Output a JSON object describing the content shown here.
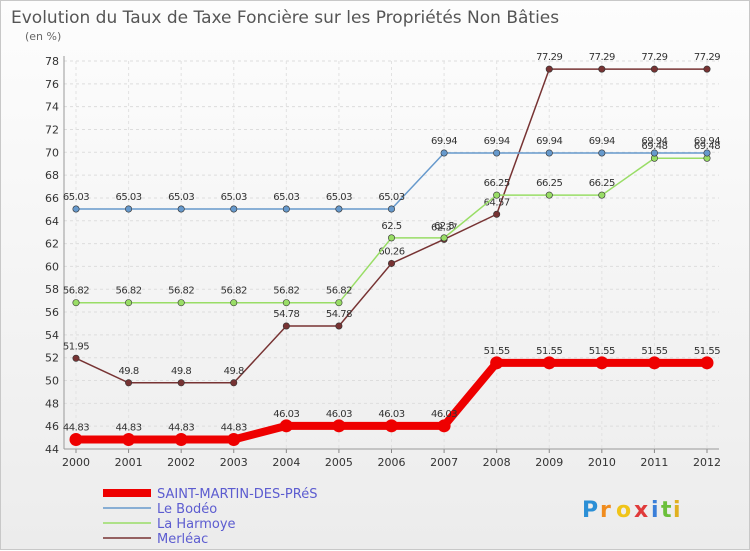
{
  "chart_data": {
    "type": "line",
    "title": "Evolution du Taux de Taxe Foncière sur les Propriétés Non Bâties",
    "subtitle": "(en %)",
    "xlabel": "",
    "ylabel": "",
    "ylim": [
      44,
      78
    ],
    "yticks": [
      44,
      46,
      48,
      50,
      52,
      54,
      56,
      58,
      60,
      62,
      64,
      66,
      68,
      70,
      72,
      74,
      76,
      78
    ],
    "categories": [
      "2000",
      "2001",
      "2002",
      "2003",
      "2004",
      "2005",
      "2006",
      "2007",
      "2008",
      "2009",
      "2010",
      "2011",
      "2012"
    ],
    "grid": true,
    "legend_position": "bottom-left",
    "series": [
      {
        "name": "SAINT-MARTIN-DES-PRéS",
        "color": "#ee0000",
        "values": [
          44.83,
          44.83,
          44.83,
          44.83,
          46.03,
          46.03,
          46.03,
          46.03,
          51.55,
          51.55,
          51.55,
          51.55,
          51.55
        ],
        "labels": [
          "44.83",
          "44.83",
          "44.83",
          "44.83",
          "46.03",
          "46.03",
          "46.03",
          "46.03",
          "51.55",
          "51.55",
          "51.55",
          "51.55",
          "51.55"
        ]
      },
      {
        "name": "Le Bodéo",
        "color": "#6699cc",
        "values": [
          65.03,
          65.03,
          65.03,
          65.03,
          65.03,
          65.03,
          65.03,
          69.94,
          69.94,
          69.94,
          69.94,
          69.94,
          69.94
        ],
        "labels": [
          "65.03",
          "65.03",
          "65.03",
          "65.03",
          "65.03",
          "65.03",
          "65.03",
          "69.94",
          "69.94",
          "69.94",
          "69.94",
          "69.94",
          "69.94"
        ]
      },
      {
        "name": "La Harmoye",
        "color": "#99dd66",
        "values": [
          56.82,
          56.82,
          56.82,
          56.82,
          56.82,
          56.82,
          62.5,
          62.5,
          66.25,
          66.25,
          66.25,
          69.48,
          69.48
        ],
        "labels": [
          "56.82",
          "56.82",
          "56.82",
          "56.82",
          "56.82",
          "56.82",
          "62.5",
          "62.5",
          "66.25",
          "66.25",
          "66.25",
          "69.48",
          "69.48"
        ]
      },
      {
        "name": "Merléac",
        "color": "#773333",
        "values": [
          51.95,
          49.8,
          49.8,
          49.8,
          54.78,
          54.78,
          60.26,
          62.37,
          64.57,
          77.29,
          77.29,
          77.29,
          77.29
        ],
        "labels": [
          "51.95",
          "49.8",
          "49.8",
          "49.8",
          "54.78",
          "54.78",
          "60.26",
          "62.37",
          "64.57",
          "77.29",
          "77.29",
          "77.29",
          "77.29"
        ]
      }
    ],
    "logo": [
      "P",
      "r",
      "o",
      "x",
      "i",
      "t",
      "i"
    ]
  }
}
